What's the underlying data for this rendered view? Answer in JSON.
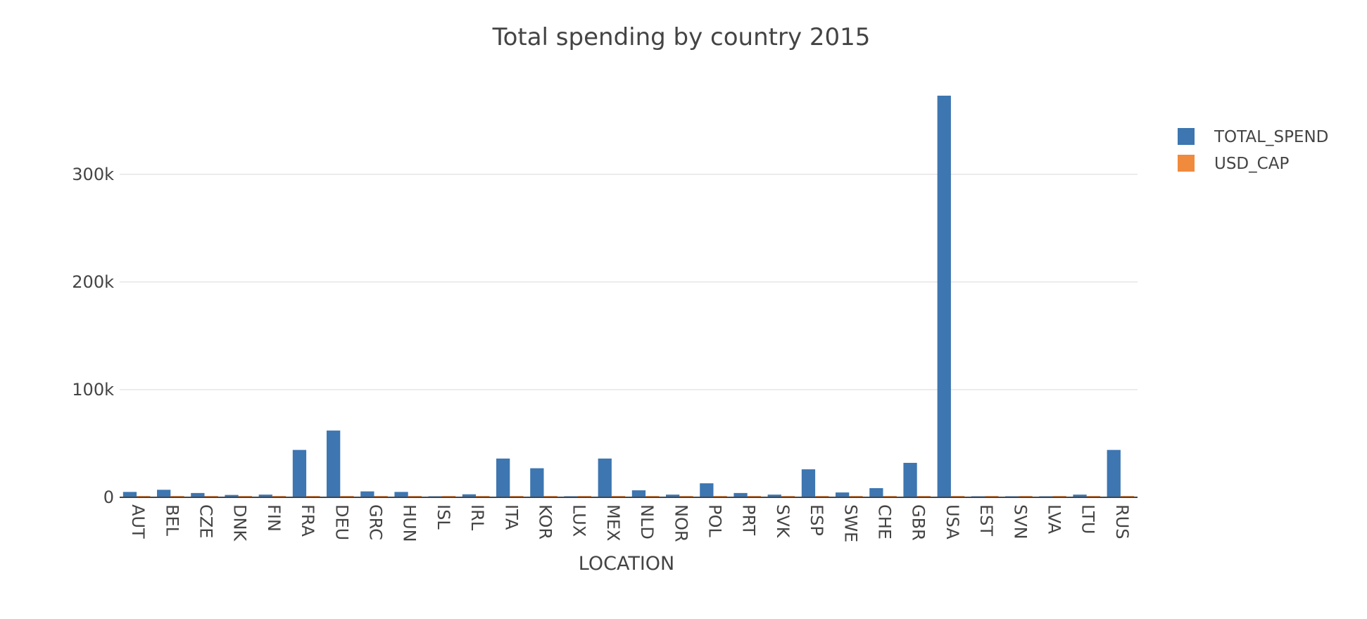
{
  "chart_data": {
    "type": "bar",
    "title": "Total spending by country 2015",
    "xlabel": "LOCATION",
    "ylabel": "",
    "categories": [
      "AUT",
      "BEL",
      "CZE",
      "DNK",
      "FIN",
      "FRA",
      "DEU",
      "GRC",
      "HUN",
      "ISL",
      "IRL",
      "ITA",
      "KOR",
      "LUX",
      "MEX",
      "NLD",
      "NOR",
      "POL",
      "PRT",
      "SVK",
      "ESP",
      "SWE",
      "CHE",
      "GBR",
      "USA",
      "EST",
      "SVN",
      "LVA",
      "LTU",
      "RUS"
    ],
    "series": [
      {
        "name": "TOTAL_SPEND",
        "color": "#3d76b1",
        "values": [
          5000,
          7000,
          4000,
          2200,
          2500,
          44000,
          62000,
          5500,
          5000,
          500,
          2800,
          36000,
          27000,
          1000,
          36000,
          6500,
          2500,
          13000,
          4000,
          2500,
          26000,
          4500,
          8500,
          32000,
          373000,
          800,
          800,
          600,
          2500,
          44000
        ]
      },
      {
        "name": "USD_CAP",
        "color": "#f08a3c",
        "values": [
          1300,
          1300,
          1300,
          1300,
          1300,
          1300,
          1300,
          1300,
          1300,
          1300,
          1300,
          1300,
          1300,
          1300,
          1300,
          1300,
          1300,
          1300,
          1300,
          1300,
          1300,
          1300,
          1300,
          1300,
          1300,
          1300,
          1300,
          1300,
          1300,
          1300
        ]
      }
    ],
    "ylim": [
      0,
      390000
    ],
    "yticks": [
      0,
      100000,
      200000,
      300000
    ],
    "ytick_labels": [
      "0",
      "100k",
      "200k",
      "300k"
    ],
    "grid": true,
    "legend_position": "top-right"
  }
}
